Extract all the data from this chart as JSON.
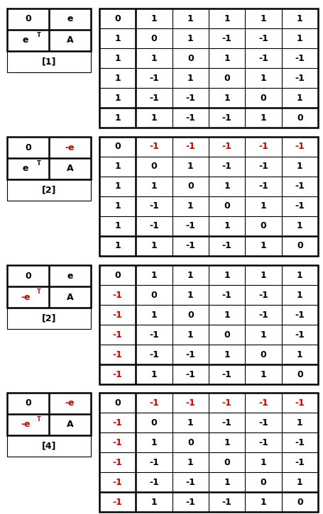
{
  "sections": [
    {
      "label_top_left": "0",
      "label_top_right": "e",
      "label_mid_left_parts": [
        "e",
        "T"
      ],
      "label_mid_right": "A",
      "label_bot": "[1]",
      "label_top_right_color": "#000000",
      "label_mid_left_color": "#000000",
      "matrix": [
        [
          "0",
          "1",
          "1",
          "1",
          "1",
          "1"
        ],
        [
          "1",
          "0",
          "1",
          "-1",
          "-1",
          "1"
        ],
        [
          "1",
          "1",
          "0",
          "1",
          "-1",
          "-1"
        ],
        [
          "1",
          "-1",
          "1",
          "0",
          "1",
          "-1"
        ],
        [
          "1",
          "-1",
          "-1",
          "1",
          "0",
          "1"
        ],
        [
          "1",
          "1",
          "-1",
          "-1",
          "1",
          "0"
        ]
      ],
      "matrix_colors": [
        [
          "k",
          "k",
          "k",
          "k",
          "k",
          "k"
        ],
        [
          "k",
          "k",
          "k",
          "k",
          "k",
          "k"
        ],
        [
          "k",
          "k",
          "k",
          "k",
          "k",
          "k"
        ],
        [
          "k",
          "k",
          "k",
          "k",
          "k",
          "k"
        ],
        [
          "k",
          "k",
          "k",
          "k",
          "k",
          "k"
        ],
        [
          "k",
          "k",
          "k",
          "k",
          "k",
          "k"
        ]
      ]
    },
    {
      "label_top_left": "0",
      "label_top_right": "-e",
      "label_mid_left_parts": [
        "e",
        "T"
      ],
      "label_mid_right": "A",
      "label_bot": "[2]",
      "label_top_right_color": "#cc0000",
      "label_mid_left_color": "#000000",
      "matrix": [
        [
          "0",
          "-1",
          "-1",
          "-1",
          "-1",
          "-1"
        ],
        [
          "1",
          "0",
          "1",
          "-1",
          "-1",
          "1"
        ],
        [
          "1",
          "1",
          "0",
          "1",
          "-1",
          "-1"
        ],
        [
          "1",
          "-1",
          "1",
          "0",
          "1",
          "-1"
        ],
        [
          "1",
          "-1",
          "-1",
          "1",
          "0",
          "1"
        ],
        [
          "1",
          "1",
          "-1",
          "-1",
          "1",
          "0"
        ]
      ],
      "matrix_colors": [
        [
          "k",
          "r",
          "r",
          "r",
          "r",
          "r"
        ],
        [
          "k",
          "k",
          "k",
          "k",
          "k",
          "k"
        ],
        [
          "k",
          "k",
          "k",
          "k",
          "k",
          "k"
        ],
        [
          "k",
          "k",
          "k",
          "k",
          "k",
          "k"
        ],
        [
          "k",
          "k",
          "k",
          "k",
          "k",
          "k"
        ],
        [
          "k",
          "k",
          "k",
          "k",
          "k",
          "k"
        ]
      ]
    },
    {
      "label_top_left": "0",
      "label_top_right": "e",
      "label_mid_left_parts": [
        "-e",
        "T"
      ],
      "label_mid_right": "A",
      "label_bot": "[2]",
      "label_top_right_color": "#000000",
      "label_mid_left_color": "#cc0000",
      "matrix": [
        [
          "0",
          "1",
          "1",
          "1",
          "1",
          "1"
        ],
        [
          "-1",
          "0",
          "1",
          "-1",
          "-1",
          "1"
        ],
        [
          "-1",
          "1",
          "0",
          "1",
          "-1",
          "-1"
        ],
        [
          "-1",
          "-1",
          "1",
          "0",
          "1",
          "-1"
        ],
        [
          "-1",
          "-1",
          "-1",
          "1",
          "0",
          "1"
        ],
        [
          "-1",
          "1",
          "-1",
          "-1",
          "1",
          "0"
        ]
      ],
      "matrix_colors": [
        [
          "k",
          "k",
          "k",
          "k",
          "k",
          "k"
        ],
        [
          "r",
          "k",
          "k",
          "k",
          "k",
          "k"
        ],
        [
          "r",
          "k",
          "k",
          "k",
          "k",
          "k"
        ],
        [
          "r",
          "k",
          "k",
          "k",
          "k",
          "k"
        ],
        [
          "r",
          "k",
          "k",
          "k",
          "k",
          "k"
        ],
        [
          "r",
          "k",
          "k",
          "k",
          "k",
          "k"
        ]
      ]
    },
    {
      "label_top_left": "0",
      "label_top_right": "-e",
      "label_mid_left_parts": [
        "-e",
        "T"
      ],
      "label_mid_right": "A",
      "label_bot": "[4]",
      "label_top_right_color": "#cc0000",
      "label_mid_left_color": "#cc0000",
      "matrix": [
        [
          "0",
          "-1",
          "-1",
          "-1",
          "-1",
          "-1"
        ],
        [
          "-1",
          "0",
          "1",
          "-1",
          "-1",
          "1"
        ],
        [
          "-1",
          "1",
          "0",
          "1",
          "-1",
          "-1"
        ],
        [
          "-1",
          "-1",
          "1",
          "0",
          "1",
          "-1"
        ],
        [
          "-1",
          "-1",
          "-1",
          "1",
          "0",
          "1"
        ],
        [
          "-1",
          "1",
          "-1",
          "-1",
          "1",
          "0"
        ]
      ],
      "matrix_colors": [
        [
          "k",
          "r",
          "r",
          "r",
          "r",
          "r"
        ],
        [
          "r",
          "k",
          "k",
          "k",
          "k",
          "k"
        ],
        [
          "r",
          "k",
          "k",
          "k",
          "k",
          "k"
        ],
        [
          "r",
          "k",
          "k",
          "k",
          "k",
          "k"
        ],
        [
          "r",
          "k",
          "k",
          "k",
          "k",
          "k"
        ],
        [
          "r",
          "k",
          "k",
          "k",
          "k",
          "k"
        ]
      ]
    }
  ],
  "color_map": {
    "k": "#000000",
    "r": "#cc0000"
  },
  "fig_width": 4.55,
  "fig_height": 7.25,
  "dpi": 100
}
